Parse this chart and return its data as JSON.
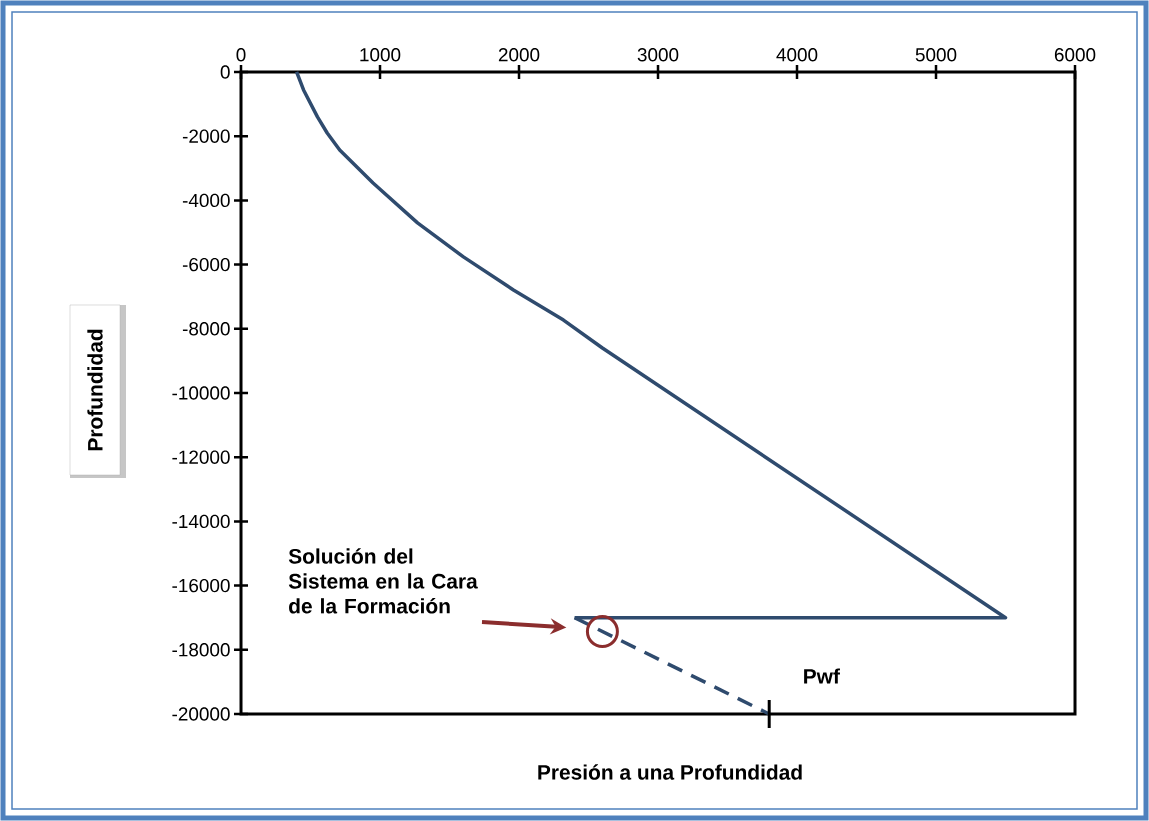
{
  "chart_data": {
    "type": "line",
    "xlabel": "Presión a una Profundidad",
    "ylabel": "Profundidad",
    "xlim": [
      0,
      6000
    ],
    "ylim": [
      -20000,
      0
    ],
    "xticks": [
      0,
      1000,
      2000,
      3000,
      4000,
      5000,
      6000
    ],
    "yticks": [
      0,
      -2000,
      -4000,
      -6000,
      -8000,
      -10000,
      -12000,
      -14000,
      -16000,
      -18000,
      -20000
    ],
    "series": [
      {
        "color": "#2f4b6e",
        "line_style": "solid",
        "x": [
          400,
          450,
          550,
          620,
          710,
          950,
          1270,
          1600,
          1960,
          2320,
          2600,
          5500,
          2400
        ],
        "values": [
          0,
          -560,
          -1400,
          -1900,
          -2430,
          -3460,
          -4700,
          -5760,
          -6790,
          -7730,
          -8600,
          -17000,
          -17000
        ]
      },
      {
        "color": "#2f4b6e",
        "line_style": "dashed",
        "x": [
          2400,
          3800
        ],
        "values": [
          -17000,
          -20000
        ]
      }
    ],
    "annotations": [
      "Solución del Sistema en la Cara de la Formación",
      {
        "text": "Pwf",
        "x": 3800,
        "y": -20000
      }
    ]
  }
}
